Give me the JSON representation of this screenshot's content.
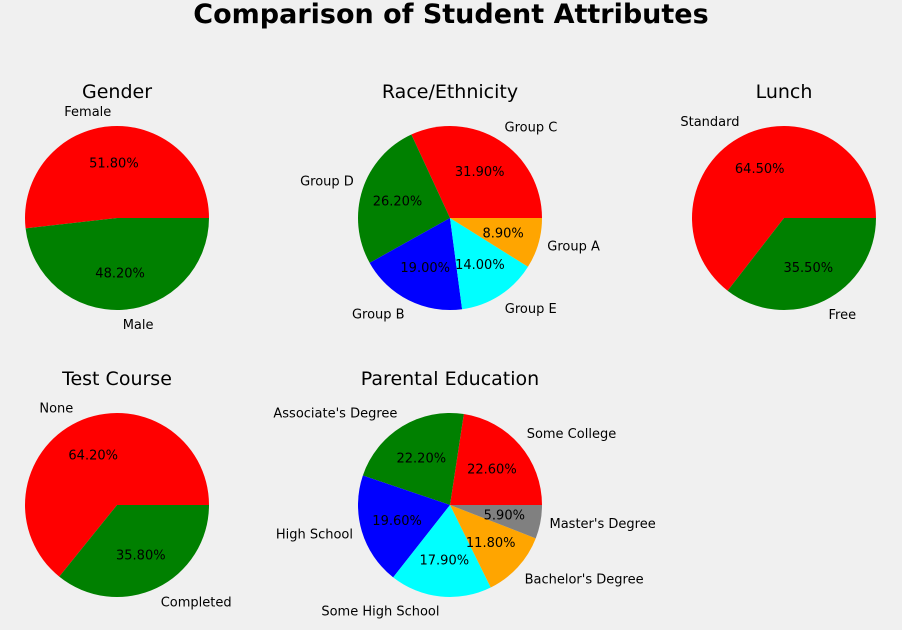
{
  "title": "Comparison of Student Attributes",
  "chart_data": [
    {
      "type": "pie",
      "title": "Gender",
      "labels": [
        "Female",
        "Male"
      ],
      "values": [
        51.8,
        48.2
      ],
      "pct_labels": [
        "51.80%",
        "48.20%"
      ],
      "colors": [
        "#ff0000",
        "#008000"
      ]
    },
    {
      "type": "pie",
      "title": "Race/Ethnicity",
      "labels": [
        "Group C",
        "Group D",
        "Group B",
        "Group E",
        "Group A"
      ],
      "values": [
        31.9,
        26.2,
        19.0,
        14.0,
        8.9
      ],
      "pct_labels": [
        "31.90%",
        "26.20%",
        "19.00%",
        "14.00%",
        "8.90%"
      ],
      "colors": [
        "#ff0000",
        "#008000",
        "#0000ff",
        "#00ffff",
        "#ffa500"
      ]
    },
    {
      "type": "pie",
      "title": "Lunch",
      "labels": [
        "Standard",
        "Free"
      ],
      "values": [
        64.5,
        35.5
      ],
      "pct_labels": [
        "64.50%",
        "35.50%"
      ],
      "colors": [
        "#ff0000",
        "#008000"
      ]
    },
    {
      "type": "pie",
      "title": "Test Course",
      "labels": [
        "None",
        "Completed"
      ],
      "values": [
        64.2,
        35.8
      ],
      "pct_labels": [
        "64.20%",
        "35.80%"
      ],
      "colors": [
        "#ff0000",
        "#008000"
      ]
    },
    {
      "type": "pie",
      "title": "Parental Education",
      "labels": [
        "Some College",
        "Associate's Degree",
        "High School",
        "Some High School",
        "Bachelor's Degree",
        "Master's Degree"
      ],
      "values": [
        22.6,
        22.2,
        19.6,
        17.9,
        11.8,
        5.9
      ],
      "pct_labels": [
        "22.60%",
        "22.20%",
        "19.60%",
        "17.90%",
        "11.80%",
        "5.90%"
      ],
      "colors": [
        "#ff0000",
        "#008000",
        "#0000ff",
        "#00ffff",
        "#ffa500",
        "#808080"
      ]
    }
  ]
}
